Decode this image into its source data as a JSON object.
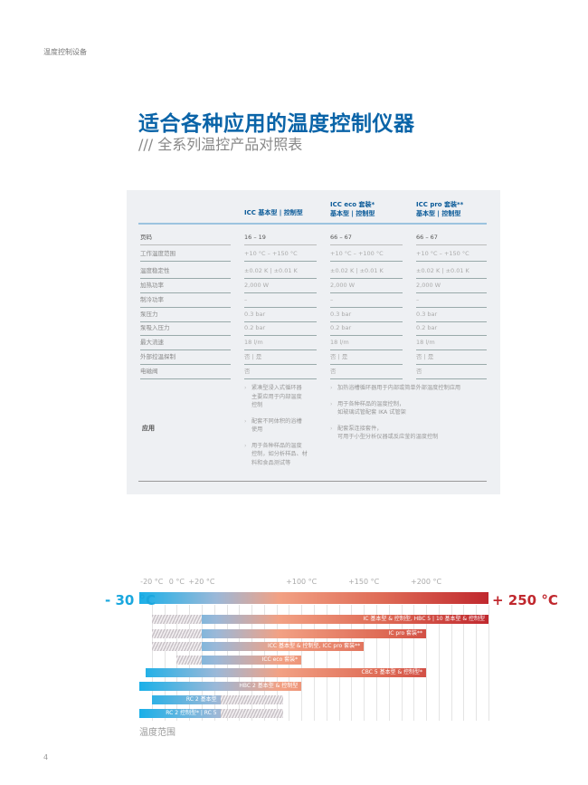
{
  "section": "温度控制设备",
  "title": "适合各种应用的温度控制仪器",
  "subtitle": "/// 全系列温控产品对照表",
  "table": {
    "columns": [
      {
        "line1": "",
        "line2": "ICC 基本型 | 控制型"
      },
      {
        "line1": "ICC eco 套装*",
        "line2": "基本型 | 控制型"
      },
      {
        "line1": "ICC pro 套装**",
        "line2": "基本型 | 控制型"
      }
    ],
    "rows": [
      {
        "label": "页码",
        "values": [
          "16 – 19",
          "66 – 67",
          "66 – 67"
        ]
      },
      {
        "label": "工作温度范围",
        "values": [
          "+10 °C – +150 °C",
          "+10 °C – +100 °C",
          "+10 °C – +150 °C"
        ]
      },
      {
        "label": "温度稳定性",
        "values": [
          "±0.02 K | ±0.01 K",
          "±0.02 K | ±0.01 K",
          "±0.02 K | ±0.01 K"
        ]
      },
      {
        "label": "加热功率",
        "values": [
          "2,000 W",
          "2,000 W",
          "2,000 W"
        ]
      },
      {
        "label": "制冷功率",
        "values": [
          "–",
          "–",
          "–"
        ]
      },
      {
        "label": "泵压力",
        "values": [
          "0.3 bar",
          "0.3 bar",
          "0.3 bar"
        ]
      },
      {
        "label": "泵吸入压力",
        "values": [
          "0.2 bar",
          "0.2 bar",
          "0.2 bar"
        ]
      },
      {
        "label": "最大流速",
        "values": [
          "18 l/m",
          "18 l/m",
          "18 l/m"
        ]
      },
      {
        "label": "外部控温探制",
        "values": [
          "否 | 是",
          "否 | 是",
          "否 | 是"
        ]
      },
      {
        "label": "电磁阀",
        "values": [
          "否",
          "否",
          "否"
        ]
      }
    ],
    "application": {
      "label": "应用",
      "col1": [
        "紧凑型浸入式循环器\n主要应用于内部温度\n控制",
        "配套不同体积的浴槽\n使用",
        "用于各种样品的温度\n控制，如分析样品、材\n料和食品测试等"
      ],
      "col23": [
        "加热浴槽循环器用于内部或简单外部温度控制应用",
        "用于各种样品的温度控制，\n如玻璃试管配套 IKA 试管架",
        "配套泵连接套件，\n可用于小型分析仪器或反应釜的温度控制"
      ]
    }
  },
  "chart_data": {
    "type": "bar",
    "orientation": "horizontal-range",
    "xlim": [
      -30,
      250
    ],
    "range_min_label": "- 30 °C",
    "range_max_label": "+ 250 °C",
    "ticks": [
      {
        "v": -20,
        "label": "-20 °C"
      },
      {
        "v": 0,
        "label": "0 °C"
      },
      {
        "v": 20,
        "label": "+20 °C"
      },
      {
        "v": 100,
        "label": "+100 °C"
      },
      {
        "v": 150,
        "label": "+150 °C"
      },
      {
        "v": 200,
        "label": "+200 °C"
      }
    ],
    "xlabel": "温度范围",
    "colors": {
      "cold": "#1ab0e8",
      "mid": "#f2a184",
      "hot": "#c0282e"
    },
    "bars": [
      {
        "label": "IC 基本型 & 控制型, HBC 5 | 10 基本型 & 控制型",
        "from": -20,
        "to": 250,
        "hatch": [
          -20,
          20
        ]
      },
      {
        "label": "IC pro 套装**",
        "from": -20,
        "to": 200,
        "hatch": [
          -20,
          20
        ]
      },
      {
        "label": "ICC 基本型 & 控制型, ICC pro 套装**",
        "from": -20,
        "to": 150,
        "hatch": [
          -20,
          20
        ]
      },
      {
        "label": "ICC eco 套装*",
        "from": 0,
        "to": 100,
        "hatch": [
          0,
          20
        ]
      },
      {
        "label": "CBC 5 基本型 & 控制型*",
        "from": -25,
        "to": 200,
        "hatch": null
      },
      {
        "label": "HBC 2 基本型 & 控制型",
        "from": -30,
        "to": 100,
        "hatch": null
      },
      {
        "label": "RC 2 基本型",
        "from": -20,
        "to": 85,
        "hatch": [
          35,
          85
        ]
      },
      {
        "label": "RC 2 控制型* | RC 5",
        "from": -30,
        "to": 85,
        "hatch": [
          35,
          85
        ]
      }
    ]
  },
  "page_number": "4"
}
